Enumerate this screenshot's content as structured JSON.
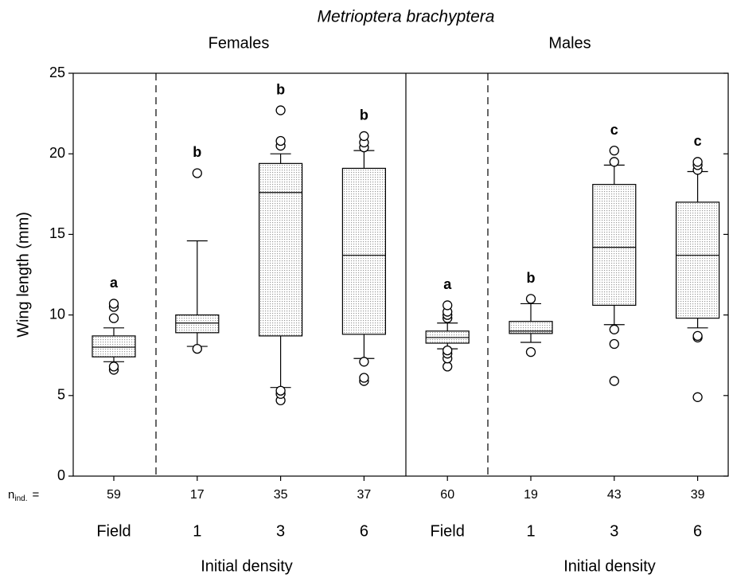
{
  "chart_data": {
    "type": "box",
    "title": "Metrioptera brachyptera",
    "group_labels": [
      "Females",
      "Males"
    ],
    "ylabel": "Wing length (mm)",
    "xlabel": "Initial density",
    "n_label": {
      "main": "n",
      "sub": "ind.",
      "eq": "="
    },
    "categories": [
      "Field",
      "1",
      "3",
      "6",
      "Field",
      "1",
      "3",
      "6"
    ],
    "n": [
      59,
      17,
      35,
      37,
      60,
      19,
      43,
      39
    ],
    "significance": [
      "a",
      "b",
      "b",
      "b",
      "a",
      "b",
      "c",
      "c"
    ],
    "box_color": "#9a9a9a",
    "ylim": [
      0,
      25
    ],
    "yticks": [
      0,
      5,
      10,
      15,
      20,
      25
    ],
    "boxes": [
      {
        "whisker_low": 7.1,
        "q1": 7.4,
        "median": 8.0,
        "q3": 8.7,
        "whisker_high": 9.2,
        "outliers": [
          6.6,
          6.8,
          9.8,
          10.5,
          10.7
        ]
      },
      {
        "whisker_low": 8.05,
        "q1": 8.9,
        "median": 9.5,
        "q3": 10.0,
        "whisker_high": 14.6,
        "outliers": [
          7.9,
          18.8
        ]
      },
      {
        "whisker_low": 5.5,
        "q1": 8.7,
        "median": 17.6,
        "q3": 19.4,
        "whisker_high": 20.0,
        "outliers": [
          4.7,
          5.1,
          5.3,
          20.5,
          20.8,
          22.7
        ]
      },
      {
        "whisker_low": 7.3,
        "q1": 8.8,
        "median": 13.7,
        "q3": 19.1,
        "whisker_high": 20.2,
        "outliers": [
          5.9,
          6.1,
          7.1,
          20.4,
          20.7,
          21.1
        ]
      },
      {
        "whisker_low": 7.9,
        "q1": 8.25,
        "median": 8.6,
        "q3": 9.0,
        "whisker_high": 9.5,
        "outliers": [
          6.8,
          7.3,
          7.6,
          7.8,
          9.8,
          10.0,
          10.2,
          10.6
        ]
      },
      {
        "whisker_low": 8.3,
        "q1": 8.85,
        "median": 9.0,
        "q3": 9.6,
        "whisker_high": 10.7,
        "outliers": [
          7.7,
          11.0
        ]
      },
      {
        "whisker_low": 9.4,
        "q1": 10.6,
        "median": 14.2,
        "q3": 18.1,
        "whisker_high": 19.3,
        "outliers": [
          5.9,
          8.2,
          9.1,
          19.5,
          20.2
        ]
      },
      {
        "whisker_low": 9.2,
        "q1": 9.8,
        "median": 13.7,
        "q3": 17.0,
        "whisker_high": 18.9,
        "outliers": [
          4.9,
          8.6,
          8.7,
          19.0,
          19.3,
          19.5
        ]
      }
    ]
  }
}
